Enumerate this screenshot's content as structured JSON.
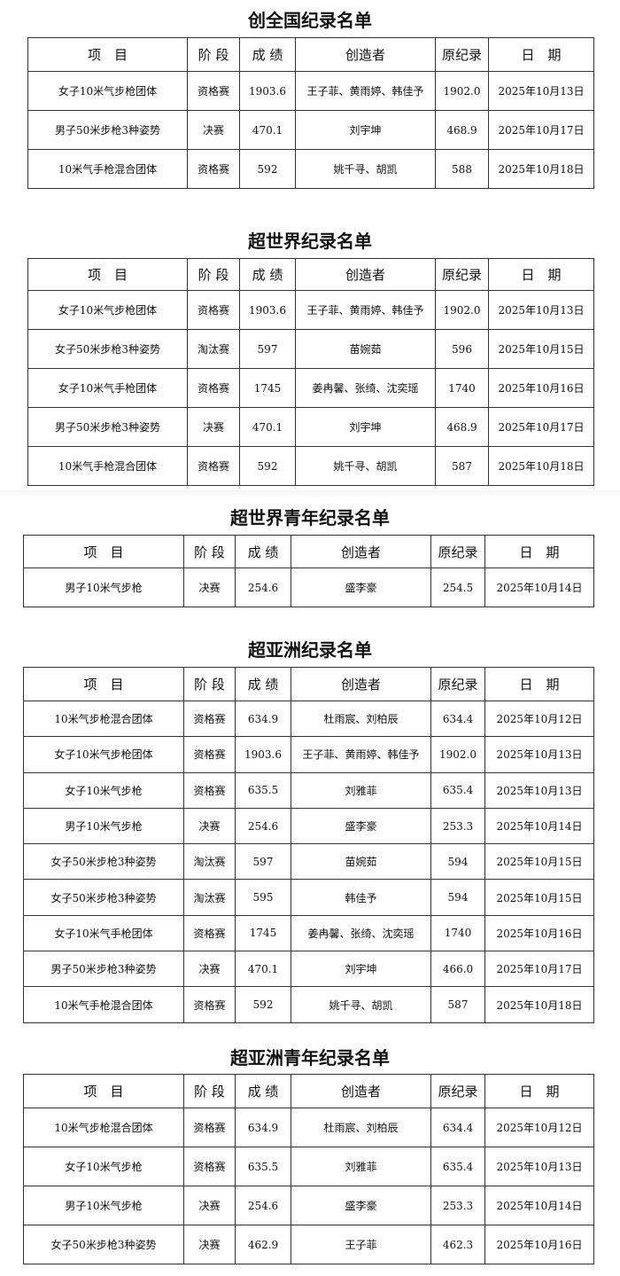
{
  "tables": [
    {
      "title": "创全国纪录名单",
      "header": [
        "项　目",
        "阶 段",
        "成 绩",
        "创造者",
        "原纪录",
        "日　期"
      ],
      "rows": [
        [
          "女子10米气步枪团体",
          "资格赛",
          "1903.6",
          "王子菲、黄雨婷、韩佳予",
          "1902.0",
          "2025年10月13日"
        ],
        [
          "男子50米步枪3种姿势",
          "决赛",
          "470.1",
          "刘宇坤",
          "468.9",
          "2025年10月17日"
        ],
        [
          "10米气手枪混合团体",
          "资格赛",
          "592",
          "姚千寻、胡凯",
          "588",
          "2025年10月18日"
        ]
      ]
    },
    {
      "title": "超世界纪录名单",
      "header": [
        "项　目",
        "阶 段",
        "成 绩",
        "创造者",
        "原纪录",
        "日　期"
      ],
      "rows": [
        [
          "女子10米气步枪团体",
          "资格赛",
          "1903.6",
          "王子菲、黄雨婷、韩佳予",
          "1902.0",
          "2025年10月13日"
        ],
        [
          "女子50米步枪3种姿势",
          "淘汰赛",
          "597",
          "苗婉茹",
          "596",
          "2025年10月15日"
        ],
        [
          "女子10米气手枪团体",
          "资格赛",
          "1745",
          "姜冉馨、张绮、沈奕瑶",
          "1740",
          "2025年10月16日"
        ],
        [
          "男子50米步枪3种姿势",
          "决赛",
          "470.1",
          "刘宇坤",
          "468.9",
          "2025年10月17日"
        ],
        [
          "10米气手枪混合团体",
          "资格赛",
          "592",
          "姚千寻、胡凯",
          "587",
          "2025年10月18日"
        ]
      ]
    },
    {
      "title": "超世界青年纪录名单",
      "header": [
        "项　目",
        "阶 段",
        "成 绩",
        "创造者",
        "原纪录",
        "日　期"
      ],
      "rows": [
        [
          "男子10米气步枪",
          "决赛",
          "254.6",
          "盛李豪",
          "254.5",
          "2025年10月14日"
        ]
      ]
    },
    {
      "title": "超亚洲纪录名单",
      "header": [
        "项　目",
        "阶 段",
        "成 绩",
        "创造者",
        "原纪录",
        "日　期"
      ],
      "rows": [
        [
          "10米气步枪混合团体",
          "资格赛",
          "634.9",
          "杜雨宸、刘柏辰",
          "634.4",
          "2025年10月12日"
        ],
        [
          "女子10米气步枪团体",
          "资格赛",
          "1903.6",
          "王子菲、黄雨婷、韩佳予",
          "1902.0",
          "2025年10月13日"
        ],
        [
          "女子10米气步枪",
          "资格赛",
          "635.5",
          "刘雅菲",
          "635.4",
          "2025年10月13日"
        ],
        [
          "男子10米气步枪",
          "决赛",
          "254.6",
          "盛李豪",
          "253.3",
          "2025年10月14日"
        ],
        [
          "女子50米步枪3种姿势",
          "淘汰赛",
          "597",
          "苗婉茹",
          "594",
          "2025年10月15日"
        ],
        [
          "女子50米步枪3种姿势",
          "淘汰赛",
          "595",
          "韩佳予",
          "594",
          "2025年10月15日"
        ],
        [
          "女子10米气手枪团体",
          "资格赛",
          "1745",
          "姜冉馨、张绮、沈奕瑶",
          "1740",
          "2025年10月16日"
        ],
        [
          "男子50米步枪3种姿势",
          "决赛",
          "470.1",
          "刘宇坤",
          "466.0",
          "2025年10月17日"
        ],
        [
          "10米气手枪混合团体",
          "资格赛",
          "592",
          "姚千寻、胡凯",
          "587",
          "2025年10月18日"
        ]
      ]
    },
    {
      "title": "超亚洲青年纪录名单",
      "header": [
        "项　目",
        "阶 段",
        "成 绩",
        "创造者",
        "原纪录",
        "日　期"
      ],
      "rows": [
        [
          "10米气步枪混合团体",
          "资格赛",
          "634.9",
          "杜雨宸、刘柏辰",
          "634.4",
          "2025年10月12日"
        ],
        [
          "女子10米气步枪",
          "资格赛",
          "635.5",
          "刘雅菲",
          "635.4",
          "2025年10月13日"
        ],
        [
          "男子10米气步枪",
          "决赛",
          "254.6",
          "盛李豪",
          "253.3",
          "2025年10月14日"
        ],
        [
          "女子50米步枪3种姿势",
          "决赛",
          "462.9",
          "王子菲",
          "462.3",
          "2025年10月16日"
        ]
      ]
    }
  ]
}
